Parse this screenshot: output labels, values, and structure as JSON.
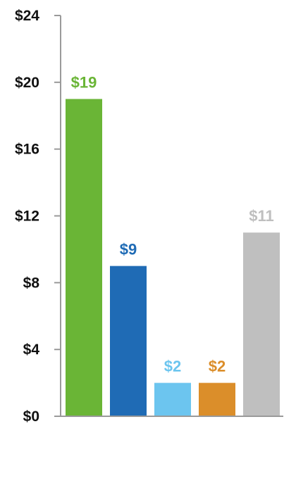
{
  "chart_data": {
    "type": "bar",
    "categories": [
      "",
      "",
      "",
      "",
      ""
    ],
    "values": [
      19,
      9,
      2,
      2,
      11
    ],
    "data_labels": [
      "$19",
      "$9",
      "$2",
      "$2",
      "$11"
    ],
    "colors": [
      "#6ab536",
      "#1f6bb5",
      "#6cc5ef",
      "#db8e2a",
      "#bfbfbf"
    ],
    "title": "",
    "xlabel": "",
    "ylabel": "",
    "ylim": [
      0,
      24
    ],
    "yticks": [
      0,
      4,
      8,
      12,
      16,
      20,
      24
    ],
    "ytick_labels": [
      "$0",
      "$4",
      "$8",
      "$12",
      "$16",
      "$20",
      "$24"
    ],
    "grid": false,
    "legend": "none"
  }
}
